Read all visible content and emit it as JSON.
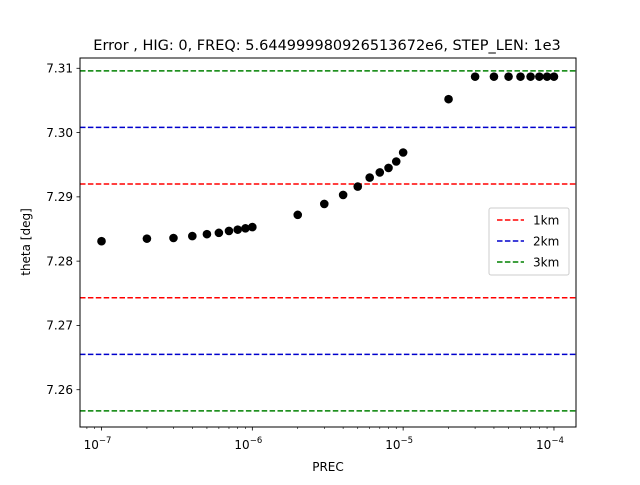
{
  "chart_data": {
    "type": "scatter",
    "title": "Error , HIG: 0, FREQ: 5.644999980926513672e6, STEP_LEN: 1e3",
    "xlabel": "PREC",
    "ylabel": "theta [deg]",
    "xscale": "log",
    "xlim": [
      7.2e-08,
      0.00014
    ],
    "ylim": [
      7.2542,
      7.3116
    ],
    "x_ticks": [
      {
        "value": 1e-07,
        "base": "10",
        "exp": "−7"
      },
      {
        "value": 1e-06,
        "base": "10",
        "exp": "−6"
      },
      {
        "value": 1e-05,
        "base": "10",
        "exp": "−5"
      },
      {
        "value": 0.0001,
        "base": "10",
        "exp": "−4"
      }
    ],
    "y_ticks": [
      7.26,
      7.27,
      7.28,
      7.29,
      7.3,
      7.31
    ],
    "y_tick_labels": [
      "7.26",
      "7.27",
      "7.28",
      "7.29",
      "7.30",
      "7.31"
    ],
    "grid": false,
    "legend_position": "right",
    "point_color": "#000000",
    "points": {
      "x": [
        1e-07,
        2e-07,
        3e-07,
        4e-07,
        5e-07,
        6e-07,
        7e-07,
        8e-07,
        9e-07,
        1e-06,
        2e-06,
        3e-06,
        4e-06,
        5e-06,
        6e-06,
        7e-06,
        8e-06,
        9e-06,
        1e-05,
        2e-05,
        3e-05,
        4e-05,
        5e-05,
        6e-05,
        7e-05,
        8e-05,
        9e-05,
        0.0001
      ],
      "y": [
        7.2831,
        7.2835,
        7.2836,
        7.2839,
        7.2842,
        7.2844,
        7.2847,
        7.2849,
        7.2851,
        7.2853,
        7.2872,
        7.2889,
        7.2903,
        7.2916,
        7.293,
        7.2938,
        7.2945,
        7.2955,
        7.2969,
        7.3052,
        7.3087,
        7.3087,
        7.3087,
        7.3087,
        7.3087,
        7.3087,
        7.3087,
        7.3087
      ]
    },
    "hlines": [
      {
        "name": "1km",
        "color": "#ff0000",
        "values": [
          7.292,
          7.2743
        ]
      },
      {
        "name": "2km",
        "color": "#0000cc",
        "values": [
          7.3008,
          7.2655
        ]
      },
      {
        "name": "3km",
        "color": "#008000",
        "values": [
          7.3096,
          7.2567
        ]
      }
    ]
  }
}
